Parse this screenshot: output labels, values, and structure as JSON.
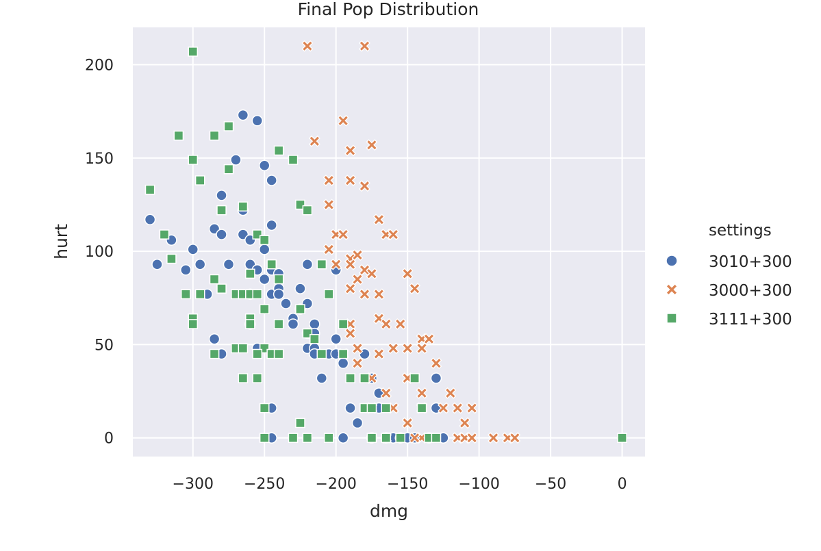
{
  "chart_data": {
    "type": "scatter",
    "title": "Final Pop Distribution",
    "xlabel": "dmg",
    "ylabel": "hurt",
    "xlim": [
      -342,
      16
    ],
    "ylim": [
      -10,
      220
    ],
    "xticks": [
      -300,
      -250,
      -200,
      -150,
      -100,
      -50,
      0
    ],
    "xtick_labels": [
      "−300",
      "−250",
      "−200",
      "−150",
      "−100",
      "−50",
      "0"
    ],
    "yticks": [
      0,
      50,
      100,
      150,
      200
    ],
    "ytick_labels": [
      "0",
      "50",
      "100",
      "150",
      "200"
    ],
    "grid": true,
    "background": "#eaeaf2",
    "legend": {
      "title": "settings",
      "placement": "right-outside"
    },
    "series": [
      {
        "name": "3010+300",
        "marker": "circle",
        "color": "#4c72b0",
        "points": [
          [
            -330,
            117
          ],
          [
            -325,
            93
          ],
          [
            -315,
            106
          ],
          [
            -305,
            90
          ],
          [
            -300,
            101
          ],
          [
            -295,
            93
          ],
          [
            -290,
            77
          ],
          [
            -285,
            112
          ],
          [
            -285,
            53
          ],
          [
            -280,
            45
          ],
          [
            -280,
            130
          ],
          [
            -280,
            109
          ],
          [
            -275,
            93
          ],
          [
            -270,
            149
          ],
          [
            -265,
            173
          ],
          [
            -265,
            122
          ],
          [
            -265,
            109
          ],
          [
            -260,
            106
          ],
          [
            -260,
            93
          ],
          [
            -260,
            77
          ],
          [
            -260,
            61
          ],
          [
            -255,
            170
          ],
          [
            -255,
            90
          ],
          [
            -255,
            48
          ],
          [
            -250,
            146
          ],
          [
            -250,
            101
          ],
          [
            -250,
            85
          ],
          [
            -245,
            138
          ],
          [
            -245,
            114
          ],
          [
            -245,
            90
          ],
          [
            -245,
            77
          ],
          [
            -240,
            88
          ],
          [
            -240,
            80
          ],
          [
            -240,
            77
          ],
          [
            -235,
            72
          ],
          [
            -230,
            64
          ],
          [
            -230,
            61
          ],
          [
            -225,
            80
          ],
          [
            -225,
            69
          ],
          [
            -220,
            93
          ],
          [
            -220,
            72
          ],
          [
            -220,
            56
          ],
          [
            -220,
            48
          ],
          [
            -215,
            61
          ],
          [
            -215,
            56
          ],
          [
            -215,
            48
          ],
          [
            -215,
            45
          ],
          [
            -210,
            32
          ],
          [
            -205,
            45
          ],
          [
            -200,
            90
          ],
          [
            -200,
            53
          ],
          [
            -200,
            45
          ],
          [
            -195,
            40
          ],
          [
            -190,
            16
          ],
          [
            -185,
            8
          ],
          [
            -180,
            45
          ],
          [
            -175,
            0
          ],
          [
            -175,
            32
          ],
          [
            -170,
            24
          ],
          [
            -170,
            16
          ],
          [
            -165,
            0
          ],
          [
            -160,
            0
          ],
          [
            -155,
            0
          ],
          [
            -150,
            0
          ],
          [
            -145,
            0
          ],
          [
            -135,
            0
          ],
          [
            -130,
            16
          ],
          [
            -130,
            32
          ],
          [
            -125,
            0
          ],
          [
            -245,
            16
          ],
          [
            -245,
            0
          ],
          [
            -195,
            0
          ]
        ]
      },
      {
        "name": "3000+300",
        "marker": "x",
        "color": "#dd8452",
        "points": [
          [
            -220,
            210
          ],
          [
            -180,
            210
          ],
          [
            -195,
            170
          ],
          [
            -215,
            159
          ],
          [
            -175,
            157
          ],
          [
            -190,
            154
          ],
          [
            -205,
            138
          ],
          [
            -190,
            138
          ],
          [
            -180,
            135
          ],
          [
            -205,
            125
          ],
          [
            -170,
            117
          ],
          [
            -200,
            109
          ],
          [
            -195,
            109
          ],
          [
            -165,
            109
          ],
          [
            -160,
            109
          ],
          [
            -205,
            101
          ],
          [
            -190,
            96
          ],
          [
            -185,
            98
          ],
          [
            -200,
            93
          ],
          [
            -190,
            93
          ],
          [
            -180,
            90
          ],
          [
            -175,
            88
          ],
          [
            -150,
            88
          ],
          [
            -185,
            85
          ],
          [
            -190,
            80
          ],
          [
            -145,
            80
          ],
          [
            -180,
            77
          ],
          [
            -170,
            77
          ],
          [
            -170,
            64
          ],
          [
            -165,
            61
          ],
          [
            -155,
            61
          ],
          [
            -190,
            61
          ],
          [
            -190,
            56
          ],
          [
            -140,
            53
          ],
          [
            -135,
            53
          ],
          [
            -185,
            48
          ],
          [
            -160,
            48
          ],
          [
            -150,
            48
          ],
          [
            -140,
            48
          ],
          [
            -170,
            45
          ],
          [
            -195,
            45
          ],
          [
            -185,
            40
          ],
          [
            -130,
            40
          ],
          [
            -175,
            32
          ],
          [
            -150,
            32
          ],
          [
            -165,
            24
          ],
          [
            -140,
            24
          ],
          [
            -120,
            24
          ],
          [
            -175,
            16
          ],
          [
            -160,
            16
          ],
          [
            -140,
            16
          ],
          [
            -125,
            16
          ],
          [
            -115,
            16
          ],
          [
            -105,
            16
          ],
          [
            -150,
            8
          ],
          [
            -110,
            8
          ],
          [
            -140,
            0
          ],
          [
            -115,
            0
          ],
          [
            -110,
            0
          ],
          [
            -105,
            0
          ],
          [
            -90,
            0
          ],
          [
            -80,
            0
          ],
          [
            -75,
            0
          ],
          [
            -165,
            0
          ],
          [
            -145,
            0
          ]
        ]
      },
      {
        "name": "3111+300",
        "marker": "square",
        "color": "#55a868",
        "points": [
          [
            -300,
            207
          ],
          [
            -310,
            162
          ],
          [
            -285,
            162
          ],
          [
            -275,
            167
          ],
          [
            -240,
            154
          ],
          [
            -300,
            149
          ],
          [
            -230,
            149
          ],
          [
            -275,
            144
          ],
          [
            -295,
            138
          ],
          [
            -330,
            133
          ],
          [
            -225,
            125
          ],
          [
            -280,
            122
          ],
          [
            -265,
            124
          ],
          [
            -220,
            122
          ],
          [
            -320,
            109
          ],
          [
            -255,
            109
          ],
          [
            -250,
            106
          ],
          [
            -315,
            96
          ],
          [
            -245,
            93
          ],
          [
            -210,
            93
          ],
          [
            -260,
            88
          ],
          [
            -240,
            85
          ],
          [
            -285,
            85
          ],
          [
            -280,
            80
          ],
          [
            -305,
            77
          ],
          [
            -295,
            77
          ],
          [
            -270,
            77
          ],
          [
            -265,
            77
          ],
          [
            -260,
            77
          ],
          [
            -255,
            77
          ],
          [
            -205,
            77
          ],
          [
            -250,
            69
          ],
          [
            -225,
            69
          ],
          [
            -300,
            64
          ],
          [
            -300,
            61
          ],
          [
            -260,
            64
          ],
          [
            -260,
            61
          ],
          [
            -240,
            61
          ],
          [
            -195,
            61
          ],
          [
            -220,
            56
          ],
          [
            -215,
            53
          ],
          [
            -270,
            48
          ],
          [
            -265,
            48
          ],
          [
            -250,
            48
          ],
          [
            -285,
            45
          ],
          [
            -255,
            45
          ],
          [
            -245,
            45
          ],
          [
            -240,
            45
          ],
          [
            -210,
            45
          ],
          [
            -195,
            45
          ],
          [
            -265,
            32
          ],
          [
            -255,
            32
          ],
          [
            -190,
            32
          ],
          [
            -180,
            32
          ],
          [
            -145,
            32
          ],
          [
            -250,
            16
          ],
          [
            -180,
            16
          ],
          [
            -175,
            16
          ],
          [
            -165,
            16
          ],
          [
            -140,
            16
          ],
          [
            -225,
            8
          ],
          [
            -250,
            0
          ],
          [
            -230,
            0
          ],
          [
            -220,
            0
          ],
          [
            -205,
            0
          ],
          [
            -175,
            0
          ],
          [
            -165,
            0
          ],
          [
            -155,
            0
          ],
          [
            -135,
            0
          ],
          [
            -130,
            0
          ],
          [
            0,
            0
          ]
        ]
      }
    ]
  }
}
